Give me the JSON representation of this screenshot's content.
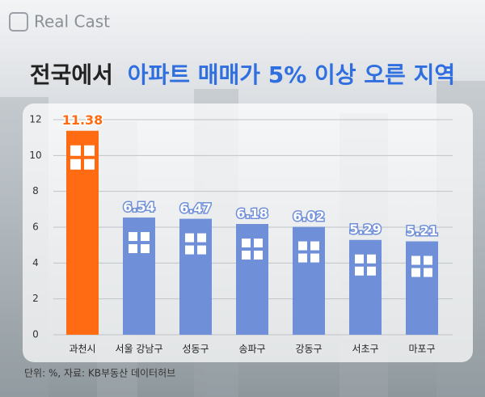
{
  "brand": "Real Cast",
  "chart_data": {
    "type": "bar",
    "title": [
      "전국에서",
      "아파트 매매가 5% 이상 오른 지역"
    ],
    "categories": [
      "과천시",
      "서울 강남구",
      "성동구",
      "송파구",
      "강동구",
      "서초구",
      "마포구"
    ],
    "values": [
      11.38,
      6.54,
      6.47,
      6.18,
      6.02,
      5.29,
      5.21
    ],
    "colors": [
      "#ff6b12",
      "#6f8fd8",
      "#6f8fd8",
      "#6f8fd8",
      "#6f8fd8",
      "#6f8fd8",
      "#6f8fd8"
    ],
    "ylim": [
      0,
      12
    ],
    "yticks": [
      0,
      2,
      4,
      6,
      8,
      10,
      12
    ],
    "grid": true,
    "note": "단위: %, 자료: KB부동산 데이터허브"
  }
}
